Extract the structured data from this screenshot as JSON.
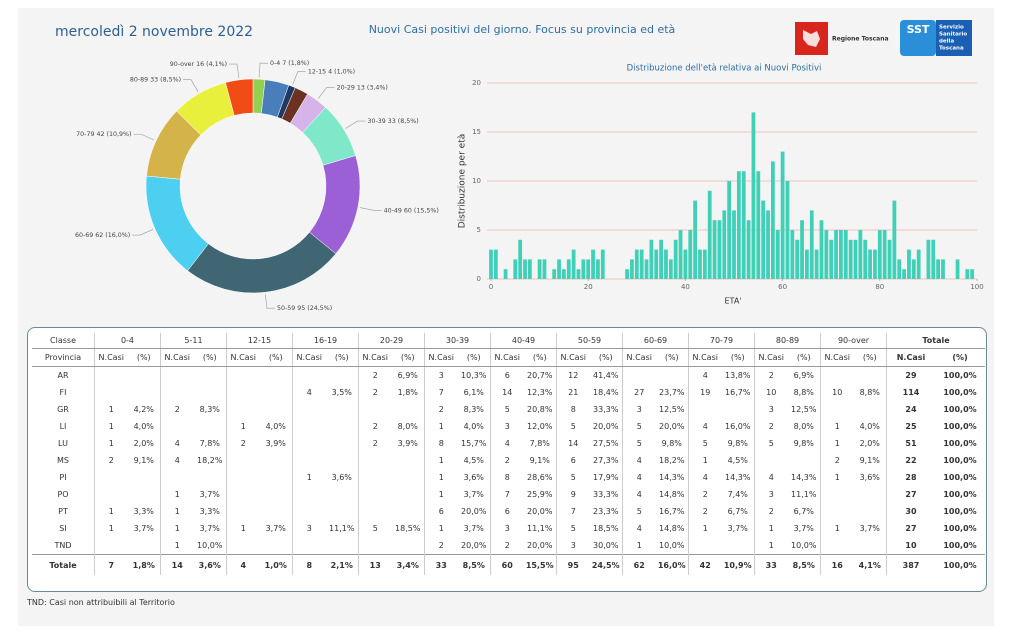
{
  "header": {
    "date": "mercoledì 2 novembre 2022",
    "title": "Nuovi Casi positivi del giorno. Focus su provincia ed età",
    "regione": "Regione Toscana",
    "sst": "SST",
    "sst_name": [
      "Servizio",
      "Sanitario",
      "della",
      "Toscana"
    ]
  },
  "chart_data": [
    {
      "type": "donut",
      "values": [
        7,
        14,
        4,
        8,
        13,
        33,
        60,
        95,
        62,
        42,
        33,
        16
      ],
      "value_labels": [
        "0-4 7 (1,8%)",
        null,
        "12-15 4 (1,0%)",
        null,
        "20-29 13 (3,4%)",
        "30-39 33 (8,5%)",
        "40-49 60 (15,5%)",
        "50-59 95 (24,5%)",
        "60-69 62 (16,0%)",
        "70-79 42 (10,9%)",
        "80-89 33 (8,5%)",
        "90-over 16 (4,1%)"
      ],
      "colors": [
        "#92d050",
        "#4a7ebb",
        "#1f3864",
        "#6b3222",
        "#d6b4ea",
        "#7ee8c8",
        "#9b5fd6",
        "#3f6672",
        "#4dcff2",
        "#d4b44a",
        "#e8f03c",
        "#f04c14"
      ]
    },
    {
      "type": "bar",
      "title": "Distribuzione dell'età relativa ai Nuovi Positivi",
      "ylabel": "Distribuzione per età",
      "xlabel": "ETA'",
      "color": "#40d0b8",
      "grid": true,
      "x": [
        0,
        1,
        2,
        3,
        4,
        5,
        6,
        7,
        8,
        9,
        10,
        11,
        12,
        13,
        14,
        15,
        16,
        17,
        18,
        19,
        20,
        21,
        22,
        23,
        24,
        25,
        26,
        27,
        28,
        29,
        30,
        31,
        32,
        33,
        34,
        35,
        36,
        37,
        38,
        39,
        40,
        41,
        42,
        43,
        44,
        45,
        46,
        47,
        48,
        49,
        50,
        51,
        52,
        53,
        54,
        55,
        56,
        57,
        58,
        59,
        60,
        61,
        62,
        63,
        64,
        65,
        66,
        67,
        68,
        69,
        70,
        71,
        72,
        73,
        74,
        75,
        76,
        77,
        78,
        79,
        80,
        81,
        82,
        83,
        84,
        85,
        86,
        87,
        88,
        89,
        90,
        91,
        92,
        93,
        94,
        95,
        96,
        97,
        98,
        99
      ],
      "values": [
        3,
        3,
        0,
        1,
        0,
        2,
        4,
        2,
        2,
        0,
        2,
        2,
        0,
        1,
        2,
        1,
        2,
        3,
        1,
        2,
        2,
        3,
        2,
        3,
        0,
        0,
        0,
        0,
        1,
        2,
        3,
        3,
        2,
        4,
        3,
        4,
        3,
        2,
        4,
        5,
        3,
        5,
        8,
        3,
        3,
        9,
        6,
        6,
        7,
        10,
        7,
        11,
        11,
        6,
        17,
        11,
        8,
        7,
        12,
        5,
        13,
        10,
        5,
        4,
        6,
        3,
        7,
        3,
        6,
        5,
        4,
        5,
        5,
        5,
        4,
        4,
        5,
        4,
        3,
        3,
        5,
        5,
        4,
        8,
        2,
        1,
        3,
        2,
        3,
        0,
        4,
        4,
        2,
        2,
        0,
        0,
        2,
        0,
        1,
        1
      ],
      "xlim": [
        0,
        100
      ],
      "xticks": [
        0,
        20,
        40,
        60,
        80,
        100
      ],
      "ylim": [
        0,
        20
      ],
      "yticks": [
        0,
        5,
        10,
        15,
        20
      ]
    }
  ],
  "table": {
    "groups": [
      "Classe",
      "0-4",
      "5-11",
      "12-15",
      "16-19",
      "20-29",
      "30-39",
      "40-49",
      "50-59",
      "60-69",
      "70-79",
      "80-89",
      "90-over",
      "Totale"
    ],
    "subheader": [
      "Provincia",
      "N.Casi",
      "(%)",
      "N.Casi",
      "(%)",
      "N.Casi",
      "(%)",
      "N.Casi",
      "(%)",
      "N.Casi",
      "(%)",
      "N.Casi",
      "(%)",
      "N.Casi",
      "(%)",
      "N.Casi",
      "(%)",
      "N.Casi",
      "(%)",
      "N.Casi",
      "(%)",
      "N.Casi",
      "(%)",
      "N.Casi",
      "(%)",
      "N.Casi",
      "(%)"
    ],
    "rows": [
      [
        "AR",
        null,
        null,
        null,
        null,
        null,
        null,
        null,
        null,
        "2",
        "6,9%",
        "3",
        "10,3%",
        "6",
        "20,7%",
        "12",
        "41,4%",
        null,
        null,
        "4",
        "13,8%",
        "2",
        "6,9%",
        null,
        null,
        "29",
        "100,0%"
      ],
      [
        "FI",
        null,
        null,
        null,
        null,
        null,
        null,
        "4",
        "3,5%",
        "2",
        "1,8%",
        "7",
        "6,1%",
        "14",
        "12,3%",
        "21",
        "18,4%",
        "27",
        "23,7%",
        "19",
        "16,7%",
        "10",
        "8,8%",
        "10",
        "8,8%",
        "114",
        "100,0%"
      ],
      [
        "GR",
        "1",
        "4,2%",
        "2",
        "8,3%",
        null,
        null,
        null,
        null,
        null,
        null,
        "2",
        "8,3%",
        "5",
        "20,8%",
        "8",
        "33,3%",
        "3",
        "12,5%",
        null,
        null,
        "3",
        "12,5%",
        null,
        null,
        "24",
        "100,0%"
      ],
      [
        "LI",
        "1",
        "4,0%",
        null,
        null,
        "1",
        "4,0%",
        null,
        null,
        "2",
        "8,0%",
        "1",
        "4,0%",
        "3",
        "12,0%",
        "5",
        "20,0%",
        "5",
        "20,0%",
        "4",
        "16,0%",
        "2",
        "8,0%",
        "1",
        "4,0%",
        "25",
        "100,0%"
      ],
      [
        "LU",
        "1",
        "2,0%",
        "4",
        "7,8%",
        "2",
        "3,9%",
        null,
        null,
        "2",
        "3,9%",
        "8",
        "15,7%",
        "4",
        "7,8%",
        "14",
        "27,5%",
        "5",
        "9,8%",
        "5",
        "9,8%",
        "5",
        "9,8%",
        "1",
        "2,0%",
        "51",
        "100,0%"
      ],
      [
        "MS",
        "2",
        "9,1%",
        "4",
        "18,2%",
        null,
        null,
        null,
        null,
        null,
        null,
        "1",
        "4,5%",
        "2",
        "9,1%",
        "6",
        "27,3%",
        "4",
        "18,2%",
        "1",
        "4,5%",
        null,
        null,
        "2",
        "9,1%",
        "22",
        "100,0%"
      ],
      [
        "PI",
        null,
        null,
        null,
        null,
        null,
        null,
        "1",
        "3,6%",
        null,
        null,
        "1",
        "3,6%",
        "8",
        "28,6%",
        "5",
        "17,9%",
        "4",
        "14,3%",
        "4",
        "14,3%",
        "4",
        "14,3%",
        "1",
        "3,6%",
        "28",
        "100,0%"
      ],
      [
        "PO",
        null,
        null,
        "1",
        "3,7%",
        null,
        null,
        null,
        null,
        null,
        null,
        "1",
        "3,7%",
        "7",
        "25,9%",
        "9",
        "33,3%",
        "4",
        "14,8%",
        "2",
        "7,4%",
        "3",
        "11,1%",
        null,
        null,
        "27",
        "100,0%"
      ],
      [
        "PT",
        "1",
        "3,3%",
        "1",
        "3,3%",
        null,
        null,
        null,
        null,
        null,
        null,
        "6",
        "20,0%",
        "6",
        "20,0%",
        "7",
        "23,3%",
        "5",
        "16,7%",
        "2",
        "6,7%",
        "2",
        "6,7%",
        null,
        null,
        "30",
        "100,0%"
      ],
      [
        "SI",
        "1",
        "3,7%",
        "1",
        "3,7%",
        "1",
        "3,7%",
        "3",
        "11,1%",
        "5",
        "18,5%",
        "1",
        "3,7%",
        "3",
        "11,1%",
        "5",
        "18,5%",
        "4",
        "14,8%",
        "1",
        "3,7%",
        "1",
        "3,7%",
        "1",
        "3,7%",
        "27",
        "100,0%"
      ],
      [
        "TND",
        null,
        null,
        "1",
        "10,0%",
        null,
        null,
        null,
        null,
        null,
        null,
        "2",
        "20,0%",
        "2",
        "20,0%",
        "3",
        "30,0%",
        "1",
        "10,0%",
        null,
        null,
        "1",
        "10,0%",
        null,
        null,
        "10",
        "100,0%"
      ],
      [
        "Totale",
        "7",
        "1,8%",
        "14",
        "3,6%",
        "4",
        "1,0%",
        "8",
        "2,1%",
        "13",
        "3,4%",
        "33",
        "8,5%",
        "60",
        "15,5%",
        "95",
        "24,5%",
        "62",
        "16,0%",
        "42",
        "10,9%",
        "33",
        "8,5%",
        "16",
        "4,1%",
        "387",
        "100,0%"
      ]
    ]
  },
  "footnote": "TND:  Casi non attribuibili al Territorio"
}
